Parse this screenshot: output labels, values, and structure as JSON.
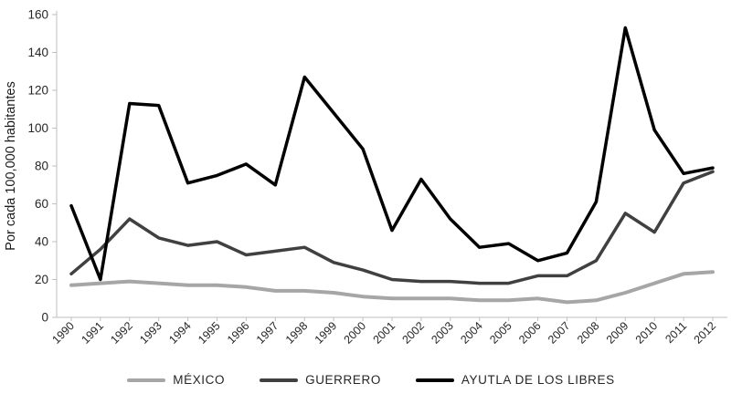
{
  "chart_data": {
    "type": "line",
    "title": "",
    "xlabel": "",
    "ylabel": "Por cada 100,000 habitantes",
    "ylim": [
      0,
      160
    ],
    "ytick_step": 20,
    "grid": false,
    "legend_position": "bottom",
    "x": [
      "1990",
      "1991",
      "1992",
      "1993",
      "1994",
      "1995",
      "1996",
      "1997",
      "1998",
      "1999",
      "2000",
      "2001",
      "2002",
      "2003",
      "2004",
      "2005",
      "2006",
      "2007",
      "2008",
      "2009",
      "2010",
      "2011",
      "2012"
    ],
    "series": [
      {
        "name": "MÉXICO",
        "color": "#a6a6a6",
        "stroke_width": 4,
        "values": [
          17,
          18,
          19,
          18,
          17,
          17,
          16,
          14,
          14,
          13,
          11,
          10,
          10,
          10,
          9,
          9,
          10,
          8,
          9,
          13,
          18,
          23,
          24
        ]
      },
      {
        "name": "GUERRERO",
        "color": "#404040",
        "stroke_width": 3.5,
        "values": [
          23,
          36,
          52,
          42,
          38,
          40,
          33,
          35,
          37,
          29,
          25,
          20,
          19,
          19,
          18,
          18,
          22,
          22,
          30,
          55,
          45,
          71,
          77
        ]
      },
      {
        "name": "AYUTLA DE LOS LIBRES",
        "color": "#000000",
        "stroke_width": 3.5,
        "values": [
          59,
          20,
          113,
          112,
          71,
          75,
          81,
          70,
          127,
          108,
          89,
          46,
          73,
          52,
          37,
          39,
          30,
          34,
          61,
          153,
          99,
          76,
          79
        ]
      }
    ]
  },
  "axis": {
    "yticks": [
      "0",
      "20",
      "40",
      "60",
      "80",
      "100",
      "120",
      "140",
      "160"
    ],
    "axis_color": "#bfbfbf",
    "tick_text_color": "#262626"
  }
}
